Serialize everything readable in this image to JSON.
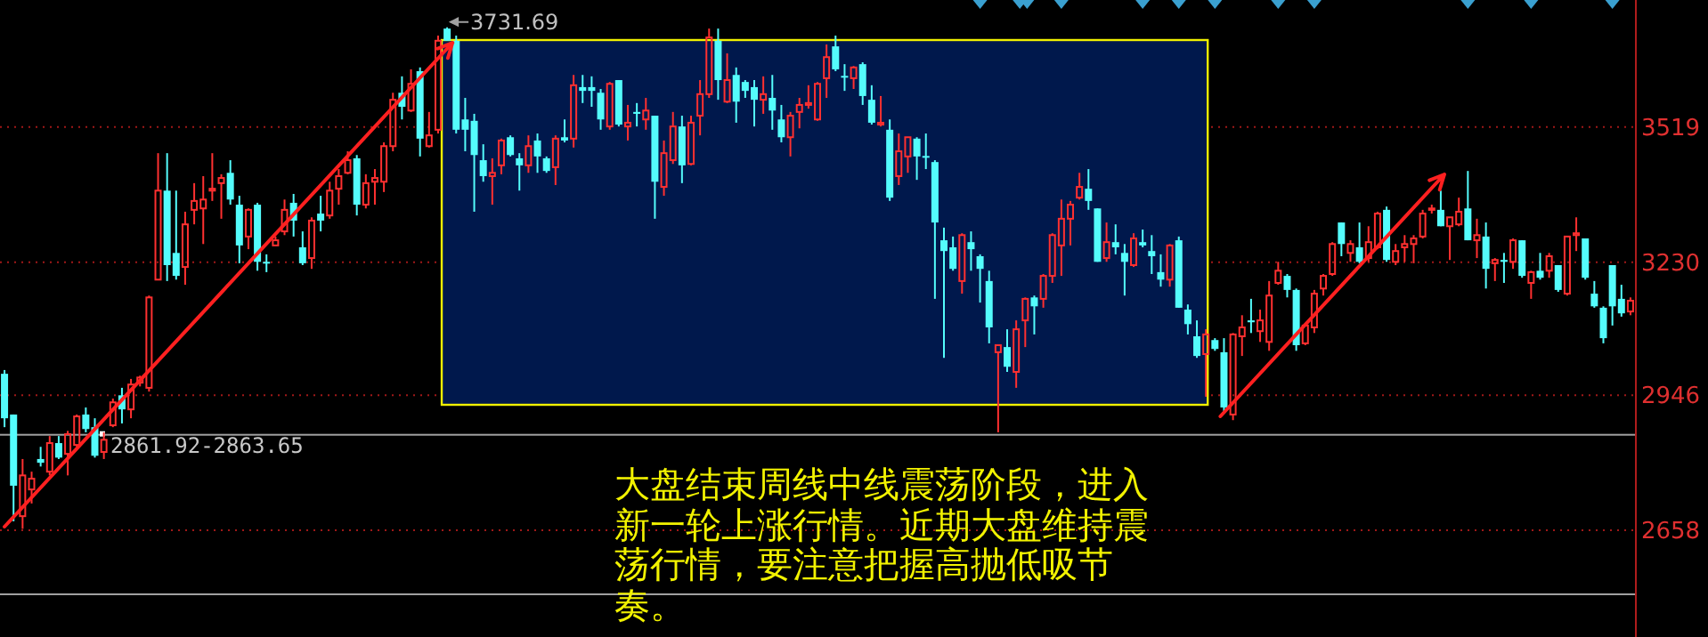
{
  "chart_data": {
    "type": "candlestick",
    "categories": [
      null,
      null,
      null,
      null,
      null,
      null,
      null,
      null,
      null,
      null,
      null,
      null,
      null,
      null,
      null,
      null,
      null,
      null,
      null,
      null,
      null,
      null,
      null,
      null,
      null,
      null,
      null,
      null,
      null,
      null,
      null,
      null,
      null,
      null,
      null,
      null,
      null,
      null,
      null,
      null,
      null,
      null,
      null,
      null,
      null,
      null,
      null,
      null,
      null,
      null,
      null,
      null,
      null,
      null,
      null,
      null,
      null,
      null,
      null,
      null,
      null,
      null,
      null,
      null,
      null,
      null,
      null,
      null,
      null,
      null,
      null,
      null,
      null,
      null,
      null,
      null,
      null,
      null,
      null,
      null,
      null,
      null,
      null,
      null,
      null,
      null,
      null,
      null,
      null,
      null,
      null,
      null,
      null,
      null,
      null,
      null,
      null,
      null,
      null,
      null,
      null,
      null,
      null,
      null,
      null,
      null,
      null,
      null,
      null,
      null,
      null,
      null,
      null,
      null,
      null,
      null,
      null,
      null,
      null,
      null,
      null,
      null,
      null,
      null,
      null,
      null,
      null,
      null,
      null,
      null,
      null,
      null,
      null,
      null,
      null,
      null,
      null,
      null,
      null,
      null,
      null,
      null,
      null,
      null,
      null,
      null,
      null,
      null,
      null,
      null,
      null,
      null,
      null,
      null,
      null,
      null,
      null,
      null,
      null,
      null,
      null,
      null,
      null,
      null,
      null,
      null,
      null,
      null,
      null,
      null,
      null,
      null,
      null,
      null,
      null,
      null,
      null,
      null,
      null,
      null,
      null
    ],
    "ohlc": [
      [
        2992,
        3000,
        2878,
        2897
      ],
      [
        2905,
        2905,
        2677,
        2753
      ],
      [
        2688,
        2810,
        2661,
        2775
      ],
      [
        2745,
        2783,
        2715,
        2768
      ],
      [
        2810,
        2836,
        2794,
        2802
      ],
      [
        2783,
        2859,
        2775,
        2844
      ],
      [
        2844,
        2859,
        2810,
        2813
      ],
      [
        2821,
        2870,
        2775,
        2863
      ],
      [
        2840,
        2905,
        2836,
        2901
      ],
      [
        2905,
        2920,
        2867,
        2874
      ],
      [
        2878,
        2897,
        2813,
        2817
      ],
      [
        2825,
        2867,
        2810,
        2851
      ],
      [
        2882,
        2939,
        2878,
        2931
      ],
      [
        2946,
        2962,
        2886,
        2916
      ],
      [
        2916,
        2981,
        2897,
        2969
      ],
      [
        2973,
        2988,
        2965,
        2984
      ],
      [
        2962,
        3159,
        2954,
        3155
      ],
      [
        3193,
        3463,
        3193,
        3383
      ],
      [
        3383,
        3463,
        3190,
        3224
      ],
      [
        3250,
        3383,
        3193,
        3201
      ],
      [
        3220,
        3338,
        3182,
        3311
      ],
      [
        3342,
        3399,
        3311,
        3361
      ],
      [
        3345,
        3414,
        3269,
        3364
      ],
      [
        3383,
        3463,
        3361,
        3387
      ],
      [
        3399,
        3418,
        3323,
        3410
      ],
      [
        3421,
        3448,
        3353,
        3364
      ],
      [
        3353,
        3372,
        3228,
        3266
      ],
      [
        3285,
        3345,
        3258,
        3342
      ],
      [
        3353,
        3357,
        3212,
        3231
      ],
      [
        3231,
        3247,
        3209,
        3228
      ],
      [
        3266,
        3285,
        3266,
        3277
      ],
      [
        3296,
        3364,
        3288,
        3342
      ],
      [
        3357,
        3376,
        3285,
        3319
      ],
      [
        3262,
        3296,
        3224,
        3228
      ],
      [
        3239,
        3326,
        3216,
        3319
      ],
      [
        3334,
        3372,
        3296,
        3319
      ],
      [
        3330,
        3402,
        3323,
        3383
      ],
      [
        3387,
        3429,
        3353,
        3414
      ],
      [
        3421,
        3467,
        3418,
        3448
      ],
      [
        3452,
        3459,
        3330,
        3353
      ],
      [
        3353,
        3418,
        3345,
        3399
      ],
      [
        3402,
        3429,
        3353,
        3410
      ],
      [
        3402,
        3486,
        3380,
        3478
      ],
      [
        3478,
        3592,
        3467,
        3577
      ],
      [
        3592,
        3627,
        3535,
        3562
      ],
      [
        3554,
        3642,
        3551,
        3611
      ],
      [
        3638,
        3646,
        3456,
        3494
      ],
      [
        3478,
        3551,
        3475,
        3501
      ],
      [
        3513,
        3714,
        3505,
        3703
      ],
      [
        3729,
        3731.69,
        3703,
        3703
      ],
      [
        3703,
        3714,
        3505,
        3513
      ],
      [
        3535,
        3581,
        3467,
        3513
      ],
      [
        3532,
        3547,
        3338,
        3459
      ],
      [
        3448,
        3482,
        3402,
        3414
      ],
      [
        3414,
        3452,
        3353,
        3421
      ],
      [
        3437,
        3494,
        3418,
        3490
      ],
      [
        3497,
        3501,
        3456,
        3459
      ],
      [
        3452,
        3463,
        3383,
        3437
      ],
      [
        3437,
        3501,
        3421,
        3478
      ],
      [
        3490,
        3505,
        3421,
        3456
      ],
      [
        3452,
        3456,
        3421,
        3425
      ],
      [
        3433,
        3501,
        3395,
        3494
      ],
      [
        3497,
        3535,
        3486,
        3490
      ],
      [
        3494,
        3630,
        3475,
        3608
      ],
      [
        3604,
        3630,
        3570,
        3596
      ],
      [
        3604,
        3627,
        3562,
        3596
      ],
      [
        3592,
        3600,
        3513,
        3535
      ],
      [
        3520,
        3615,
        3513,
        3611
      ],
      [
        3619,
        3619,
        3520,
        3524
      ],
      [
        3520,
        3566,
        3490,
        3528
      ],
      [
        3551,
        3570,
        3520,
        3547
      ],
      [
        3535,
        3581,
        3513,
        3554
      ],
      [
        3543,
        3543,
        3323,
        3402
      ],
      [
        3391,
        3490,
        3372,
        3463
      ],
      [
        3448,
        3551,
        3440,
        3520
      ],
      [
        3520,
        3543,
        3399,
        3437
      ],
      [
        3440,
        3543,
        3437,
        3528
      ],
      [
        3543,
        3619,
        3501,
        3589
      ],
      [
        3589,
        3729,
        3581,
        3710
      ],
      [
        3703,
        3729,
        3577,
        3619
      ],
      [
        3573,
        3676,
        3570,
        3619
      ],
      [
        3630,
        3646,
        3528,
        3573
      ],
      [
        3615,
        3619,
        3581,
        3596
      ],
      [
        3604,
        3619,
        3520,
        3577
      ],
      [
        3577,
        3627,
        3547,
        3589
      ],
      [
        3581,
        3630,
        3513,
        3554
      ],
      [
        3535,
        3566,
        3486,
        3497
      ],
      [
        3497,
        3551,
        3456,
        3543
      ],
      [
        3551,
        3581,
        3516,
        3566
      ],
      [
        3566,
        3608,
        3558,
        3570
      ],
      [
        3535,
        3615,
        3532,
        3611
      ],
      [
        3623,
        3695,
        3581,
        3668
      ],
      [
        3691,
        3714,
        3638,
        3642
      ],
      [
        3628,
        3653,
        3596,
        3626
      ],
      [
        3623,
        3649,
        3600,
        3646
      ],
      [
        3653,
        3657,
        3566,
        3585
      ],
      [
        3577,
        3608,
        3524,
        3528
      ],
      [
        3524,
        3585,
        3520,
        3528
      ],
      [
        3513,
        3535,
        3361,
        3368
      ],
      [
        3414,
        3505,
        3395,
        3467
      ],
      [
        3456,
        3497,
        3421,
        3497
      ],
      [
        3494,
        3497,
        3406,
        3456
      ],
      [
        3457,
        3505,
        3429,
        3455
      ],
      [
        3444,
        3448,
        3152,
        3315
      ],
      [
        3277,
        3304,
        3026,
        3254
      ],
      [
        3262,
        3285,
        3212,
        3216
      ],
      [
        3190,
        3292,
        3163,
        3288
      ],
      [
        3273,
        3296,
        3212,
        3258
      ],
      [
        3243,
        3247,
        3144,
        3216
      ],
      [
        3190,
        3212,
        3057,
        3091
      ],
      [
        3038,
        3053,
        2867,
        3053
      ],
      [
        3049,
        3087,
        2996,
        3007
      ],
      [
        2996,
        3106,
        2962,
        3087
      ],
      [
        3106,
        3155,
        3049,
        3152
      ],
      [
        3155,
        3159,
        3076,
        3136
      ],
      [
        3152,
        3205,
        3133,
        3201
      ],
      [
        3201,
        3292,
        3186,
        3288
      ],
      [
        3266,
        3364,
        3201,
        3323
      ],
      [
        3323,
        3361,
        3266,
        3353
      ],
      [
        3368,
        3421,
        3364,
        3391
      ],
      [
        3387,
        3429,
        3342,
        3361
      ],
      [
        3345,
        3345,
        3231,
        3231
      ],
      [
        3239,
        3315,
        3231,
        3273
      ],
      [
        3273,
        3311,
        3247,
        3262
      ],
      [
        3250,
        3269,
        3159,
        3231
      ],
      [
        3224,
        3292,
        3220,
        3281
      ],
      [
        3273,
        3300,
        3262,
        3266
      ],
      [
        3254,
        3288,
        3205,
        3243
      ],
      [
        3209,
        3247,
        3178,
        3193
      ],
      [
        3193,
        3269,
        3178,
        3266
      ],
      [
        3277,
        3285,
        3133,
        3133
      ],
      [
        3129,
        3140,
        3076,
        3098
      ],
      [
        3072,
        3106,
        3026,
        3030
      ],
      [
        3034,
        3087,
        2943,
        3076
      ],
      [
        3064,
        3068,
        3041,
        3045
      ],
      [
        3038,
        3068,
        2912,
        2920
      ],
      [
        2905,
        3079,
        2893,
        3076
      ],
      [
        3072,
        3117,
        3030,
        3091
      ],
      [
        3106,
        3152,
        3079,
        3102
      ],
      [
        3083,
        3129,
        3060,
        3106
      ],
      [
        3060,
        3190,
        3041,
        3159
      ],
      [
        3186,
        3231,
        3182,
        3212
      ],
      [
        3201,
        3205,
        3155,
        3171
      ],
      [
        3171,
        3174,
        3041,
        3053
      ],
      [
        3057,
        3098,
        3053,
        3095
      ],
      [
        3091,
        3171,
        3079,
        3163
      ],
      [
        3174,
        3205,
        3159,
        3201
      ],
      [
        3205,
        3273,
        3201,
        3269
      ],
      [
        3315,
        3315,
        3243,
        3269
      ],
      [
        3250,
        3277,
        3231,
        3269
      ],
      [
        3262,
        3315,
        3228,
        3231
      ],
      [
        3239,
        3307,
        3231,
        3273
      ],
      [
        3262,
        3338,
        3258,
        3334
      ],
      [
        3342,
        3349,
        3231,
        3235
      ],
      [
        3231,
        3269,
        3224,
        3254
      ],
      [
        3262,
        3288,
        3231,
        3269
      ],
      [
        3269,
        3288,
        3228,
        3281
      ],
      [
        3285,
        3342,
        3281,
        3334
      ],
      [
        3342,
        3353,
        3334,
        3345
      ],
      [
        3342,
        3383,
        3307,
        3307
      ],
      [
        3307,
        3326,
        3235,
        3326
      ],
      [
        3311,
        3368,
        3307,
        3338
      ],
      [
        3345,
        3425,
        3277,
        3277
      ],
      [
        3277,
        3323,
        3239,
        3288
      ],
      [
        3285,
        3315,
        3174,
        3216
      ],
      [
        3228,
        3239,
        3190,
        3235
      ],
      [
        3235,
        3250,
        3186,
        3231
      ],
      [
        3231,
        3281,
        3216,
        3277
      ],
      [
        3277,
        3277,
        3197,
        3201
      ],
      [
        3186,
        3212,
        3152,
        3209
      ],
      [
        3212,
        3250,
        3193,
        3197
      ],
      [
        3212,
        3250,
        3197,
        3243
      ],
      [
        3224,
        3224,
        3167,
        3171
      ],
      [
        3163,
        3285,
        3159,
        3285
      ],
      [
        3288,
        3326,
        3254,
        3292
      ],
      [
        3281,
        3281,
        3193,
        3197
      ],
      [
        3163,
        3190,
        3133,
        3136
      ],
      [
        3133,
        3136,
        3057,
        3068
      ],
      [
        3224,
        3224,
        3095,
        3136
      ],
      [
        3152,
        3182,
        3114,
        3121
      ],
      [
        3125,
        3155,
        3117,
        3148
      ]
    ],
    "ylim": [
      2430,
      3790
    ],
    "yticks": [
      2658,
      2946,
      3230,
      3519
    ],
    "grid": "y",
    "tick_labels": "y",
    "bands": [
      {
        "axis": "y",
        "from": 2861.92,
        "to": 2863.65,
        "label": "2861.92-2863.65",
        "color": "#a0a0a0"
      }
    ],
    "ref_lines": [
      {
        "axis": "y",
        "value": 2521,
        "color": "#a0a0a0"
      }
    ],
    "annotations": [
      "大盘结束周线中线震荡阶段，进入新一轮上涨行情。近期大盘维持震荡行情，要注意把握高抛低吸节奏。",
      "3731.69"
    ]
  }
}
